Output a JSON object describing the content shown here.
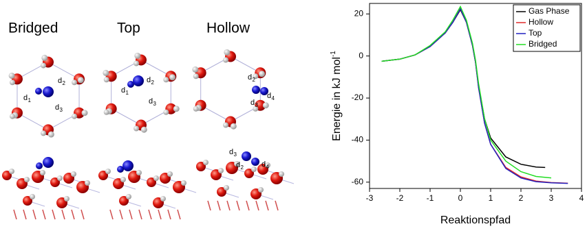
{
  "panel_titles": [
    "Bridged",
    "Top",
    "Hollow"
  ],
  "distance_labels": [
    {
      "base": "d",
      "sub": "1"
    },
    {
      "base": "d",
      "sub": "2"
    },
    {
      "base": "d",
      "sub": "3"
    },
    {
      "base": "d",
      "sub": "1"
    },
    {
      "base": "d",
      "sub": "2"
    },
    {
      "base": "d",
      "sub": "3"
    },
    {
      "base": "d",
      "sub": "2"
    },
    {
      "base": "d",
      "sub": "3"
    },
    {
      "base": "d",
      "sub": "4"
    },
    {
      "base": "d",
      "sub": "3"
    },
    {
      "base": "d",
      "sub": "2"
    },
    {
      "base": "d",
      "sub": "4"
    }
  ],
  "chart_data": {
    "type": "line",
    "x_label": "Reaktionspfad",
    "y_label": {
      "text": "Energie in kJ mol",
      "superscript": "-1"
    },
    "xlim": [
      -3,
      4
    ],
    "xticks": [
      -3,
      -2,
      -1,
      0,
      1,
      2,
      3,
      4
    ],
    "ylim": [
      -63,
      25
    ],
    "yticks": [
      -60,
      -40,
      -20,
      0,
      20
    ],
    "legend": "upper-right",
    "series": [
      {
        "name": "Gas Phase",
        "color": "#000000",
        "x": [
          -2.6,
          -2,
          -1.5,
          -1,
          -0.5,
          -0.25,
          0,
          0.2,
          0.4,
          0.5,
          0.6,
          0.8,
          1,
          1.5,
          2,
          2.5,
          2.8
        ],
        "values": [
          -2.5,
          -1.5,
          0.5,
          4.5,
          11,
          16,
          22,
          16,
          5,
          -3,
          -14,
          -30,
          -39,
          -48,
          -51.5,
          -52.8,
          -53
        ]
      },
      {
        "name": "Hollow",
        "color": "#e02828",
        "x": [
          -2.6,
          -2,
          -1.5,
          -1,
          -0.5,
          -0.25,
          0,
          0.2,
          0.4,
          0.5,
          0.6,
          0.8,
          1,
          1.5,
          2,
          2.5,
          3,
          3.55
        ],
        "values": [
          -2.5,
          -1.5,
          0.5,
          4.5,
          11,
          16,
          22.5,
          16,
          5,
          -3,
          -15,
          -32,
          -42,
          -53,
          -57.5,
          -59.5,
          -60.2,
          -60.5
        ]
      },
      {
        "name": "Top",
        "color": "#2020c0",
        "x": [
          -2.6,
          -2,
          -1.5,
          -1,
          -0.5,
          -0.25,
          0,
          0.2,
          0.4,
          0.5,
          0.6,
          0.8,
          1,
          1.5,
          2,
          2.5,
          3,
          3.55
        ],
        "values": [
          -2.5,
          -1.5,
          0.5,
          4.5,
          11,
          16,
          22.5,
          16,
          5,
          -3,
          -15,
          -32,
          -42,
          -53.5,
          -58,
          -59.8,
          -60.3,
          -60.6
        ]
      },
      {
        "name": "Bridged",
        "color": "#22dd22",
        "x": [
          -2.6,
          -2,
          -1.5,
          -1,
          -0.5,
          -0.25,
          0,
          0.2,
          0.4,
          0.5,
          0.6,
          0.8,
          1,
          1.5,
          2,
          2.5,
          3
        ],
        "values": [
          -2.5,
          -1.5,
          0.5,
          5,
          11.5,
          17,
          23.5,
          17,
          6,
          -2,
          -13,
          -30,
          -40,
          -50,
          -55,
          -57.3,
          -58
        ]
      }
    ]
  }
}
